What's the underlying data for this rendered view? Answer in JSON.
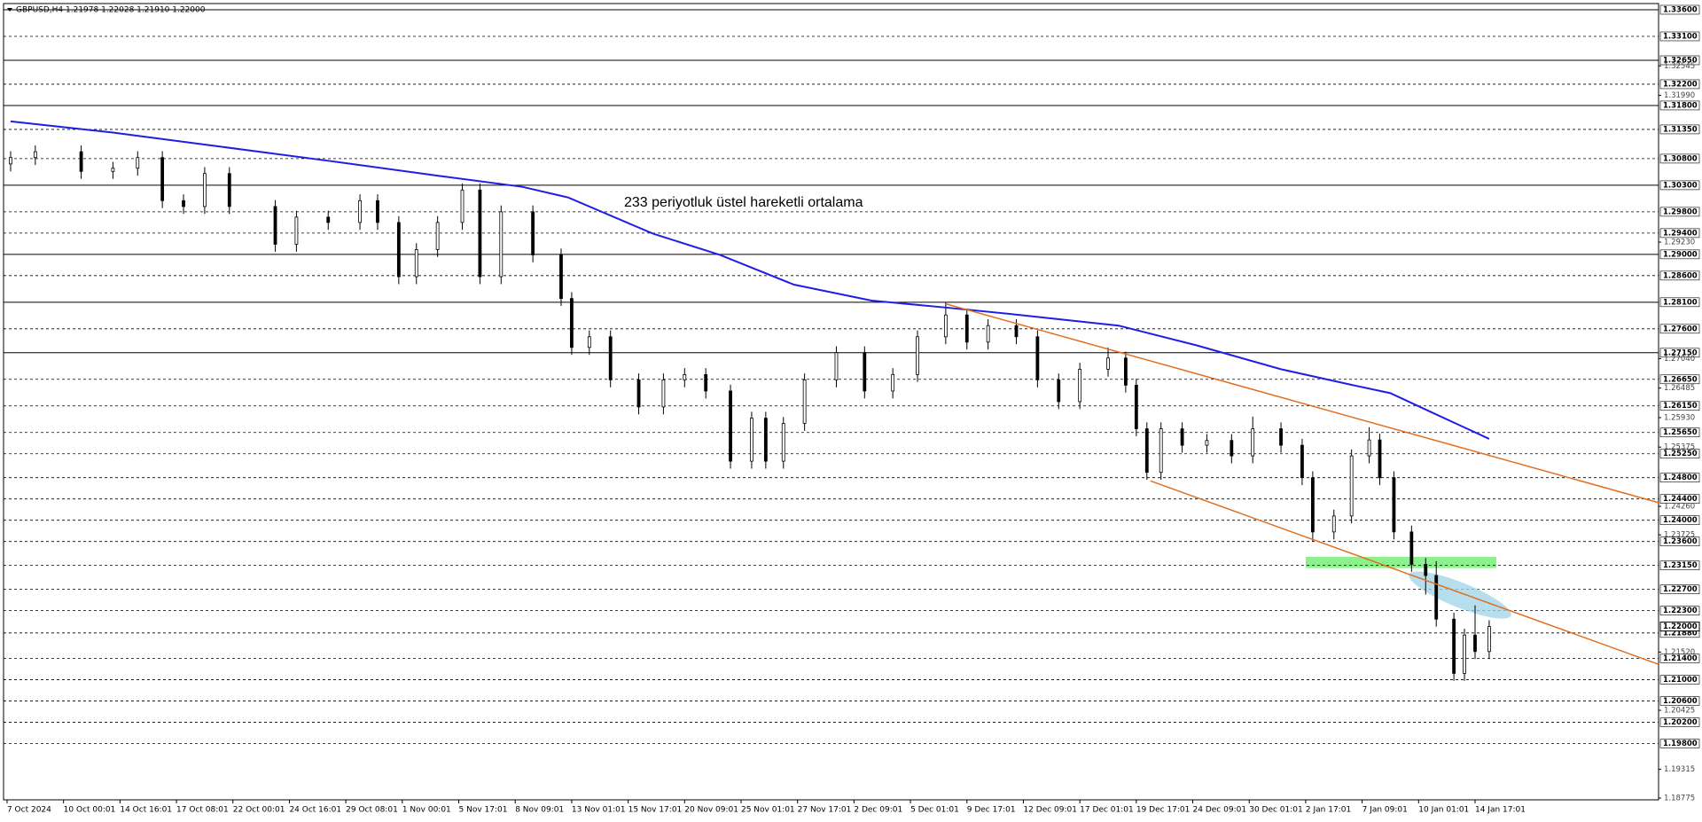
{
  "chart_data": {
    "type": "candlestick",
    "header": "GBPUSD,H4  1.21978 1.22028 1.21910 1.22000",
    "annotation": "233 periyotluk üstel hareketli ortalama",
    "annotation_color": "#1a1adc",
    "xlim": [
      -1,
      468
    ],
    "ylim": [
      1.18775,
      1.336
    ],
    "xticks": [
      {
        "value": 0,
        "label": "7 Oct 2024"
      },
      {
        "value": 16,
        "label": "10 Oct 00:01"
      },
      {
        "value": 32,
        "label": "14 Oct 16:01"
      },
      {
        "value": 48,
        "label": "17 Oct 08:01"
      },
      {
        "value": 64,
        "label": "22 Oct 00:01"
      },
      {
        "value": 80,
        "label": "24 Oct 16:01"
      },
      {
        "value": 96,
        "label": "29 Oct 08:01"
      },
      {
        "value": 112,
        "label": "1 Nov 00:01"
      },
      {
        "value": 128,
        "label": "5 Nov 17:01"
      },
      {
        "value": 144,
        "label": "8 Nov 09:01"
      },
      {
        "value": 160,
        "label": "13 Nov 01:01"
      },
      {
        "value": 176,
        "label": "15 Nov 17:01"
      },
      {
        "value": 192,
        "label": "20 Nov 09:01"
      },
      {
        "value": 208,
        "label": "25 Nov 01:01"
      },
      {
        "value": 224,
        "label": "27 Nov 17:01"
      },
      {
        "value": 240,
        "label": "2 Dec 09:01"
      },
      {
        "value": 256,
        "label": "5 Dec 01:01"
      },
      {
        "value": 272,
        "label": "9 Dec 17:01"
      },
      {
        "value": 288,
        "label": "12 Dec 09:01"
      },
      {
        "value": 304,
        "label": "17 Dec 01:01"
      },
      {
        "value": 320,
        "label": "19 Dec 17:01"
      },
      {
        "value": 336,
        "label": "24 Dec 09:01"
      },
      {
        "value": 352,
        "label": "30 Dec 01:01"
      },
      {
        "value": 368,
        "label": "2 Jan 17:01"
      },
      {
        "value": 384,
        "label": "7 Jan 09:01"
      },
      {
        "value": 400,
        "label": "10 Jan 01:01"
      },
      {
        "value": 416,
        "label": "14 Jan 17:01"
      }
    ],
    "yticks": [
      {
        "value": 1.32545,
        "label": "1.32545"
      },
      {
        "value": 1.3199,
        "label": "1.31990"
      },
      {
        "value": 1.2923,
        "label": "1.29230"
      },
      {
        "value": 1.2704,
        "label": "1.27040"
      },
      {
        "value": 1.26485,
        "label": "1.26485"
      },
      {
        "value": 1.2593,
        "label": "1.25930"
      },
      {
        "value": 1.25375,
        "label": "1.25375"
      },
      {
        "value": 1.2426,
        "label": "1.24260"
      },
      {
        "value": 1.23725,
        "label": "1.23725"
      },
      {
        "value": 1.2152,
        "label": "1.21520"
      },
      {
        "value": 1.20425,
        "label": "1.20425"
      },
      {
        "value": 1.19315,
        "label": "1.19315"
      },
      {
        "value": 1.18775,
        "label": "1.18775"
      }
    ],
    "levels": [
      {
        "value": 1.336,
        "label": "1.33600",
        "line": "solid"
      },
      {
        "value": 1.331,
        "label": "1.33100",
        "line": "dashed"
      },
      {
        "value": 1.3265,
        "label": "1.32650",
        "line": "solid"
      },
      {
        "value": 1.322,
        "label": "1.32200",
        "line": "dashed"
      },
      {
        "value": 1.318,
        "label": "1.31800",
        "line": "solid"
      },
      {
        "value": 1.3135,
        "label": "1.31350",
        "line": "dashed"
      },
      {
        "value": 1.308,
        "label": "1.30800",
        "line": "dashed"
      },
      {
        "value": 1.303,
        "label": "1.30300",
        "line": "solid"
      },
      {
        "value": 1.298,
        "label": "1.29800",
        "line": "dashed"
      },
      {
        "value": 1.294,
        "label": "1.29400",
        "line": "dashed"
      },
      {
        "value": 1.29,
        "label": "1.29000",
        "line": "solid"
      },
      {
        "value": 1.286,
        "label": "1.28600",
        "line": "dashed"
      },
      {
        "value": 1.281,
        "label": "1.28100",
        "line": "solid"
      },
      {
        "value": 1.276,
        "label": "1.27600",
        "line": "dashed"
      },
      {
        "value": 1.2715,
        "label": "1.27150",
        "line": "solid"
      },
      {
        "value": 1.2665,
        "label": "1.26650",
        "line": "dashed"
      },
      {
        "value": 1.2615,
        "label": "1.26150",
        "line": "dashed"
      },
      {
        "value": 1.2565,
        "label": "1.25650",
        "line": "dashed"
      },
      {
        "value": 1.2525,
        "label": "1.25250",
        "line": "dashed"
      },
      {
        "value": 1.248,
        "label": "1.24800",
        "line": "dashed"
      },
      {
        "value": 1.244,
        "label": "1.24400",
        "line": "dashed"
      },
      {
        "value": 1.24,
        "label": "1.24000",
        "line": "dashed"
      },
      {
        "value": 1.236,
        "label": "1.23600",
        "line": "dashed"
      },
      {
        "value": 1.2315,
        "label": "1.23150",
        "line": "dashed"
      },
      {
        "value": 1.227,
        "label": "1.22700",
        "line": "dashed"
      },
      {
        "value": 1.223,
        "label": "1.22300",
        "line": "dashed"
      },
      {
        "value": 1.2188,
        "label": "1.21880",
        "line": "dashed"
      },
      {
        "value": 1.214,
        "label": "1.21400",
        "line": "dashed"
      },
      {
        "value": 1.21,
        "label": "1.21000",
        "line": "dashed"
      },
      {
        "value": 1.206,
        "label": "1.20600",
        "line": "dashed"
      },
      {
        "value": 1.202,
        "label": "1.20200",
        "line": "dashed"
      },
      {
        "value": 1.198,
        "label": "1.19800",
        "line": "dashed"
      }
    ],
    "last_price": {
      "value": 1.22,
      "label": "1.22000"
    },
    "x": [
      1,
      8,
      21,
      30,
      37,
      44,
      50,
      56,
      63,
      76,
      82,
      91,
      100,
      105,
      111,
      116,
      122,
      129,
      134,
      140,
      149,
      157,
      160,
      165,
      171,
      179,
      186,
      192,
      198,
      205,
      211,
      215,
      220,
      226,
      235,
      243,
      251,
      258,
      266,
      272,
      278,
      286,
      292,
      298,
      304,
      312,
      317,
      320,
      323,
      327,
      333,
      340,
      347,
      353,
      361,
      367,
      370,
      376,
      381,
      386,
      389,
      393,
      398,
      402,
      405,
      410,
      413,
      416,
      420
    ],
    "open": [
      1.307,
      1.3082,
      1.3093,
      1.3056,
      1.3062,
      1.3082,
      1.3001,
      1.299,
      1.3052,
      1.299,
      1.2919,
      1.297,
      1.296,
      1.3001,
      1.296,
      1.2858,
      1.2909,
      1.296,
      1.3021,
      1.2858,
      1.298,
      1.2899,
      1.2817,
      1.2725,
      1.2745,
      1.2664,
      1.2613,
      1.2664,
      1.2674,
      1.2643,
      1.2511,
      1.2592,
      1.2511,
      1.2582,
      1.2664,
      1.2715,
      1.2643,
      1.2674,
      1.2745,
      1.2786,
      1.2735,
      1.2766,
      1.2745,
      1.2664,
      1.2623,
      1.2684,
      1.2705,
      1.2654,
      1.2572,
      1.249,
      1.2572,
      1.2541,
      1.255,
      1.2521,
      1.2572,
      1.2541,
      1.248,
      1.2378,
      1.2408,
      1.2521,
      1.2551,
      1.248,
      1.2378,
      1.2317,
      1.2296,
      1.2214,
      1.2112,
      1.2184,
      1.2153
    ],
    "high": [
      1.3094,
      1.3105,
      1.3105,
      1.3074,
      1.3094,
      1.3094,
      1.3013,
      1.3064,
      1.3064,
      1.3002,
      1.2982,
      1.2982,
      1.3013,
      1.3013,
      1.2972,
      1.2921,
      1.2972,
      1.3033,
      1.3033,
      1.2992,
      1.2992,
      1.2911,
      1.2829,
      1.2757,
      1.2757,
      1.2676,
      1.2676,
      1.2686,
      1.2686,
      1.2655,
      1.2604,
      1.2604,
      1.2594,
      1.2676,
      1.2727,
      1.2727,
      1.2686,
      1.2757,
      1.281,
      1.2798,
      1.2778,
      1.2778,
      1.2757,
      1.2676,
      1.2696,
      1.2725,
      1.2717,
      1.2666,
      1.2584,
      1.2584,
      1.2584,
      1.2562,
      1.2562,
      1.2595,
      1.2584,
      1.2553,
      1.2492,
      1.242,
      1.2533,
      1.2575,
      1.2563,
      1.2492,
      1.239,
      1.2329,
      1.2323,
      1.2226,
      1.2196,
      1.224,
      1.2212
    ],
    "low": [
      1.3056,
      1.3068,
      1.3042,
      1.3042,
      1.3048,
      1.2987,
      1.2976,
      1.2976,
      1.2976,
      1.2905,
      1.2905,
      1.2946,
      1.2946,
      1.2946,
      1.2844,
      1.2844,
      1.2895,
      1.2946,
      1.2844,
      1.2844,
      1.2885,
      1.2803,
      1.2711,
      1.2711,
      1.265,
      1.2599,
      1.2599,
      1.265,
      1.2629,
      1.2497,
      1.2497,
      1.2497,
      1.2497,
      1.2568,
      1.265,
      1.2629,
      1.2629,
      1.266,
      1.2731,
      1.2721,
      1.2721,
      1.2731,
      1.265,
      1.2609,
      1.2609,
      1.267,
      1.264,
      1.2558,
      1.2476,
      1.2476,
      1.2527,
      1.2527,
      1.2507,
      1.2507,
      1.2527,
      1.2466,
      1.236,
      1.2364,
      1.2394,
      1.2507,
      1.2466,
      1.2364,
      1.2303,
      1.226,
      1.22,
      1.2098,
      1.2098,
      1.2139,
      1.2139
    ],
    "close": [
      1.3082,
      1.3093,
      1.3056,
      1.3062,
      1.3082,
      1.3001,
      1.299,
      1.3052,
      1.299,
      1.2919,
      1.297,
      1.296,
      1.3001,
      1.296,
      1.2858,
      1.2909,
      1.296,
      1.3021,
      1.2858,
      1.298,
      1.2899,
      1.2817,
      1.2725,
      1.2745,
      1.2664,
      1.2613,
      1.2664,
      1.2674,
      1.2643,
      1.2511,
      1.2592,
      1.2511,
      1.2582,
      1.2664,
      1.2715,
      1.2643,
      1.2674,
      1.2745,
      1.2786,
      1.2735,
      1.2766,
      1.2745,
      1.2664,
      1.2623,
      1.2684,
      1.2705,
      1.2654,
      1.2572,
      1.249,
      1.2572,
      1.2541,
      1.255,
      1.2521,
      1.2572,
      1.2541,
      1.248,
      1.2378,
      1.2408,
      1.2521,
      1.2551,
      1.248,
      1.2378,
      1.2317,
      1.2296,
      1.2214,
      1.2112,
      1.2184,
      1.2153,
      1.22
    ],
    "ema": {
      "color": "#1e1ee6",
      "x": [
        1,
        30,
        60,
        91,
        122,
        146,
        159,
        183,
        202,
        223,
        245,
        266,
        287,
        315,
        337,
        361,
        380,
        392,
        404,
        420
      ],
      "values": [
        1.315,
        1.3129,
        1.3103,
        1.3076,
        1.3048,
        1.3027,
        1.3007,
        1.2939,
        1.2899,
        1.2843,
        1.2813,
        1.28,
        1.2786,
        1.2766,
        1.2729,
        1.2684,
        1.2656,
        1.2639,
        1.2602,
        1.2553
      ]
    },
    "trendlines": [
      {
        "color": "#e0701e",
        "x": [
          266,
          468
        ],
        "y": [
          1.2807,
          1.2433
        ]
      },
      {
        "color": "#e0701e",
        "x": [
          324,
          468
        ],
        "y": [
          1.2474,
          1.2129
        ]
      }
    ],
    "zones": [
      {
        "color": "#8cf08c",
        "x": [
          368,
          422
        ],
        "y": [
          1.231,
          1.2331
        ]
      }
    ]
  }
}
